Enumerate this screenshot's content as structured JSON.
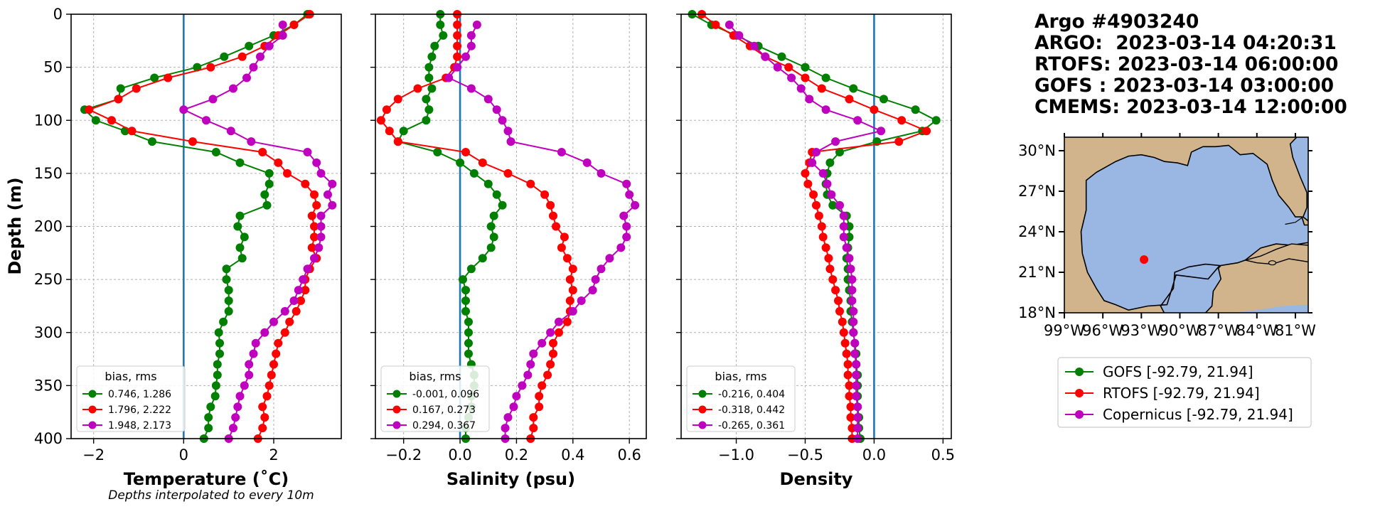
{
  "figure": {
    "depth_label": "Depth (m)",
    "note": "Depths interpolated to every 10m",
    "title_lines": [
      "Argo #4903240",
      "ARGO:  2023-03-14 04:20:31",
      "RTOFS: 2023-03-14 06:00:00",
      "GOFS : 2023-03-14 03:00:00",
      "CMEMS: 2023-03-14 12:00:00"
    ]
  },
  "colors": {
    "GOFS": "#008000",
    "RTOFS": "#ff0000",
    "Copernicus": "#bf00bf",
    "zero_line": "#1f77b4",
    "land": "#d2b48c",
    "ocean": "#9ab7e4",
    "grid": "#b0b0b0"
  },
  "chart_data": [
    {
      "type": "line",
      "xlabel": "Temperature (˚C)",
      "ylabel": "Depth (m)",
      "xlim": [
        -2.5,
        3.5
      ],
      "ylim": [
        400,
        0
      ],
      "xticks": [
        "−2",
        "0",
        "2"
      ],
      "xtick_values": [
        -2,
        0,
        2
      ],
      "yticks": [
        "0",
        "50",
        "100",
        "150",
        "200",
        "250",
        "300",
        "350",
        "400"
      ],
      "ytick_values": [
        0,
        50,
        100,
        150,
        200,
        250,
        300,
        350,
        400
      ],
      "grid": true,
      "zero_line": 0,
      "legend": {
        "title": "bias, rms",
        "location": "lower-left",
        "entries": [
          "0.746, 1.286",
          "1.796, 2.222",
          "1.948, 2.173"
        ]
      },
      "depth": [
        0,
        10,
        20,
        30,
        40,
        50,
        60,
        70,
        80,
        90,
        100,
        110,
        120,
        130,
        140,
        150,
        160,
        170,
        180,
        190,
        200,
        210,
        220,
        230,
        240,
        250,
        260,
        270,
        280,
        290,
        300,
        310,
        320,
        330,
        340,
        350,
        360,
        370,
        380,
        390,
        400
      ],
      "series": [
        {
          "name": "GOFS",
          "values": [
            2.75,
            2.45,
            2.0,
            1.45,
            0.9,
            0.3,
            -0.65,
            -1.4,
            -1.45,
            -2.2,
            -1.95,
            -1.3,
            -0.7,
            0.72,
            1.25,
            1.9,
            1.9,
            1.8,
            1.85,
            1.25,
            1.2,
            1.35,
            1.25,
            1.3,
            0.95,
            0.95,
            1.0,
            1.0,
            1.0,
            0.88,
            0.78,
            0.8,
            0.8,
            0.75,
            0.75,
            0.72,
            0.7,
            0.6,
            0.55,
            0.55,
            0.45
          ]
        },
        {
          "name": "RTOFS",
          "values": [
            2.8,
            2.45,
            2.1,
            1.8,
            1.3,
            0.6,
            -0.35,
            -1.05,
            -1.45,
            -2.1,
            -1.6,
            -1.15,
            0.2,
            1.75,
            2.1,
            2.3,
            2.7,
            2.9,
            2.95,
            2.85,
            2.9,
            2.9,
            2.85,
            2.95,
            2.8,
            2.7,
            2.7,
            2.6,
            2.5,
            2.35,
            2.25,
            2.1,
            2.05,
            2.0,
            1.95,
            1.9,
            1.85,
            1.75,
            1.8,
            1.75,
            1.65
          ]
        },
        {
          "name": "Copernicus",
          "values": [
            null,
            2.2,
            2.2,
            1.9,
            1.7,
            1.55,
            1.4,
            1.1,
            0.65,
            0.0,
            0.5,
            1.05,
            1.5,
            2.75,
            2.95,
            3.05,
            3.3,
            3.2,
            3.3,
            3.05,
            3.05,
            3.05,
            3.0,
            2.9,
            2.75,
            2.65,
            2.55,
            2.45,
            2.25,
            2.0,
            1.8,
            1.6,
            1.55,
            1.45,
            1.45,
            1.35,
            1.25,
            1.2,
            1.15,
            1.1,
            1.0
          ]
        }
      ]
    },
    {
      "type": "line",
      "xlabel": "Salinity (psu)",
      "xlim": [
        -0.3,
        0.66
      ],
      "ylim": [
        400,
        0
      ],
      "xticks": [
        "−0.2",
        "0.0",
        "0.2",
        "0.4",
        "0.6"
      ],
      "xtick_values": [
        -0.2,
        0,
        0.2,
        0.4,
        0.6
      ],
      "grid": true,
      "zero_line": 0,
      "legend": {
        "title": "bias, rms",
        "location": "lower-left",
        "entries": [
          "-0.001, 0.096",
          "0.167, 0.273",
          "0.294, 0.367"
        ]
      },
      "depth": [
        0,
        10,
        20,
        30,
        40,
        50,
        60,
        70,
        80,
        90,
        100,
        110,
        120,
        130,
        140,
        150,
        160,
        170,
        180,
        190,
        200,
        210,
        220,
        230,
        240,
        250,
        260,
        270,
        280,
        290,
        300,
        310,
        320,
        330,
        340,
        350,
        360,
        370,
        380,
        390,
        400
      ],
      "series": [
        {
          "name": "GOFS",
          "values": [
            -0.07,
            -0.07,
            -0.06,
            -0.09,
            -0.1,
            -0.11,
            -0.11,
            -0.1,
            -0.12,
            -0.11,
            -0.12,
            -0.2,
            -0.22,
            -0.08,
            0.0,
            0.05,
            0.1,
            0.13,
            0.15,
            0.12,
            0.11,
            0.12,
            0.11,
            0.08,
            0.04,
            0.01,
            0.02,
            0.02,
            0.02,
            0.03,
            0.03,
            0.03,
            0.03,
            0.04,
            0.05,
            0.05,
            0.04,
            0.04,
            0.03,
            0.02,
            0.02
          ]
        },
        {
          "name": "RTOFS",
          "values": [
            -0.01,
            -0.01,
            -0.01,
            -0.01,
            -0.01,
            -0.02,
            -0.05,
            -0.15,
            -0.22,
            -0.26,
            -0.28,
            -0.25,
            -0.22,
            0.02,
            0.08,
            0.17,
            0.25,
            0.3,
            0.32,
            0.33,
            0.34,
            0.37,
            0.36,
            0.38,
            0.4,
            0.39,
            0.4,
            0.39,
            0.39,
            0.38,
            0.35,
            0.33,
            0.33,
            0.32,
            0.31,
            0.29,
            0.28,
            0.28,
            0.26,
            0.26,
            0.25
          ]
        },
        {
          "name": "Copernicus",
          "values": [
            null,
            0.06,
            0.04,
            0.04,
            0.02,
            -0.01,
            -0.04,
            0.04,
            0.1,
            0.13,
            0.15,
            0.17,
            0.18,
            0.36,
            0.45,
            0.5,
            0.59,
            0.6,
            0.62,
            0.58,
            0.59,
            0.59,
            0.57,
            0.53,
            0.5,
            0.48,
            0.47,
            0.43,
            0.4,
            0.35,
            0.32,
            0.29,
            0.26,
            0.25,
            0.24,
            0.22,
            0.2,
            0.19,
            0.17,
            0.16,
            0.16
          ]
        }
      ]
    },
    {
      "type": "line",
      "xlabel": "Density",
      "xlim": [
        -1.4,
        0.56
      ],
      "ylim": [
        400,
        0
      ],
      "xticks": [
        "−1.0",
        "−0.5",
        "0.0",
        "0.5"
      ],
      "xtick_values": [
        -1.0,
        -0.5,
        0,
        0.5
      ],
      "grid": true,
      "zero_line": 0,
      "legend": {
        "title": "bias, rms",
        "location": "lower-left",
        "entries": [
          "-0.216, 0.404",
          "-0.318, 0.442",
          "-0.265, 0.361"
        ]
      },
      "depth": [
        0,
        10,
        20,
        30,
        40,
        50,
        60,
        70,
        80,
        90,
        100,
        110,
        120,
        130,
        140,
        150,
        160,
        170,
        180,
        190,
        200,
        210,
        220,
        230,
        240,
        250,
        260,
        270,
        280,
        290,
        300,
        310,
        320,
        330,
        340,
        350,
        360,
        370,
        380,
        390,
        400
      ],
      "series": [
        {
          "name": "GOFS",
          "values": [
            -1.32,
            -1.18,
            -1.0,
            -0.84,
            -0.67,
            -0.5,
            -0.35,
            -0.15,
            0.07,
            0.3,
            0.45,
            0.35,
            0.02,
            -0.25,
            -0.32,
            -0.34,
            -0.35,
            -0.34,
            -0.3,
            -0.2,
            -0.18,
            -0.18,
            -0.19,
            -0.2,
            -0.19,
            -0.19,
            -0.18,
            -0.17,
            -0.17,
            -0.16,
            -0.15,
            -0.14,
            -0.13,
            -0.13,
            -0.12,
            -0.12,
            -0.12,
            -0.12,
            -0.11,
            -0.11,
            -0.1
          ]
        },
        {
          "name": "RTOFS",
          "values": [
            -1.25,
            -1.15,
            -1.02,
            -0.9,
            -0.79,
            -0.62,
            -0.5,
            -0.38,
            -0.18,
            0.0,
            0.2,
            0.38,
            0.18,
            -0.45,
            -0.47,
            -0.5,
            -0.48,
            -0.44,
            -0.42,
            -0.4,
            -0.38,
            -0.37,
            -0.35,
            -0.33,
            -0.32,
            -0.3,
            -0.28,
            -0.26,
            -0.25,
            -0.23,
            -0.22,
            -0.21,
            -0.2,
            -0.19,
            -0.19,
            -0.18,
            -0.18,
            -0.17,
            -0.17,
            -0.16,
            -0.16
          ]
        },
        {
          "name": "Copernicus",
          "values": [
            null,
            -1.05,
            -0.98,
            -0.87,
            -0.79,
            -0.7,
            -0.6,
            -0.53,
            -0.47,
            -0.35,
            -0.12,
            0.05,
            -0.28,
            -0.42,
            -0.45,
            -0.37,
            -0.34,
            -0.31,
            -0.25,
            -0.22,
            -0.22,
            -0.22,
            -0.2,
            -0.18,
            -0.17,
            -0.16,
            -0.16,
            -0.16,
            -0.15,
            -0.15,
            -0.15,
            -0.14,
            -0.14,
            -0.13,
            -0.13,
            -0.13,
            -0.13,
            -0.12,
            -0.12,
            -0.12,
            -0.12
          ]
        }
      ]
    }
  ],
  "map": {
    "lat_ticks": [
      "30°N",
      "27°N",
      "24°N",
      "21°N",
      "18°N"
    ],
    "lat_values": [
      30,
      27,
      24,
      21,
      18
    ],
    "lon_ticks": [
      "99°W",
      "96°W",
      "93°W",
      "90°W",
      "87°W",
      "84°W",
      "81°W"
    ],
    "lon_values": [
      -99,
      -96,
      -93,
      -90,
      -87,
      -84,
      -81
    ],
    "lon_range": [
      -99,
      -80
    ],
    "lat_range": [
      18,
      31
    ],
    "float_position": [
      -92.79,
      21.94
    ]
  },
  "map_legend": [
    {
      "label": "GOFS [-92.79, 21.94]",
      "series": "GOFS"
    },
    {
      "label": "RTOFS [-92.79, 21.94]",
      "series": "RTOFS"
    },
    {
      "label": "Copernicus [-92.79, 21.94]",
      "series": "Copernicus"
    }
  ]
}
